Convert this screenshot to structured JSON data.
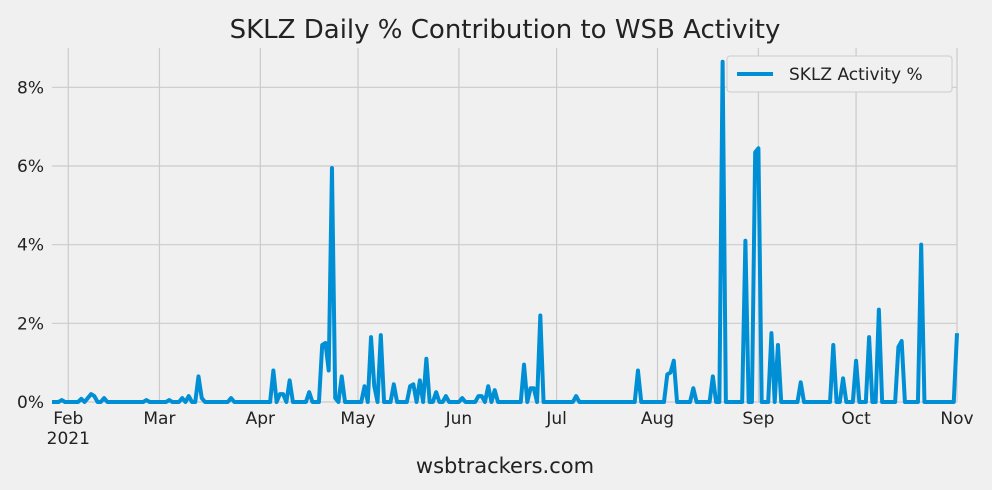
{
  "chart_data": {
    "type": "line",
    "title": "SKLZ Daily % Contribution to WSB Activity",
    "xlabel": "wsbtrackers.com",
    "series": [
      {
        "name": "SKLZ Activity %",
        "color": "#008fd5",
        "values": [
          0,
          0,
          0,
          0.05,
          0,
          0,
          0,
          0,
          0,
          0.08,
          0,
          0.1,
          0.2,
          0.15,
          0,
          0,
          0.1,
          0,
          0,
          0,
          0,
          0,
          0,
          0,
          0,
          0,
          0,
          0,
          0,
          0.05,
          0,
          0,
          0,
          0,
          0,
          0,
          0.05,
          0,
          0,
          0,
          0.1,
          0,
          0.15,
          0,
          0,
          0.65,
          0.1,
          0,
          0,
          0,
          0,
          0,
          0,
          0,
          0,
          0.1,
          0,
          0,
          0,
          0,
          0,
          0,
          0,
          0,
          0,
          0,
          0,
          0,
          0.8,
          0,
          0.2,
          0.2,
          0,
          0.55,
          0,
          0,
          0,
          0,
          0,
          0.25,
          0,
          0,
          0,
          1.45,
          1.5,
          0.8,
          5.95,
          0.1,
          0,
          0.65,
          0,
          0,
          0,
          0,
          0,
          0,
          0.4,
          0,
          1.65,
          0.4,
          0,
          1.7,
          0,
          0,
          0,
          0.45,
          0,
          0,
          0,
          0,
          0.4,
          0.45,
          0,
          0.55,
          0,
          1.1,
          0,
          0,
          0.25,
          0,
          0,
          0.15,
          0,
          0,
          0,
          0,
          0.1,
          0,
          0,
          0,
          0,
          0.15,
          0.15,
          0,
          0.4,
          0,
          0.3,
          0,
          0,
          0,
          0,
          0,
          0,
          0,
          0,
          0.95,
          0,
          0.35,
          0.35,
          0,
          2.2,
          0,
          0,
          0,
          0,
          0,
          0,
          0,
          0,
          0,
          0,
          0.15,
          0,
          0,
          0,
          0,
          0,
          0,
          0,
          0,
          0,
          0,
          0,
          0,
          0,
          0,
          0,
          0,
          0,
          0,
          0.8,
          0,
          0,
          0,
          0,
          0,
          0,
          0,
          0,
          0.7,
          0.75,
          1.05,
          0,
          0,
          0,
          0,
          0,
          0.35,
          0,
          0,
          0,
          0,
          0,
          0.65,
          0,
          0,
          8.65,
          0,
          0,
          0,
          0,
          0,
          0,
          4.1,
          0,
          0,
          6.35,
          6.45,
          0,
          0,
          0,
          1.75,
          0,
          1.45,
          0,
          0,
          0,
          0,
          0,
          0,
          0.5,
          0,
          0,
          0,
          0,
          0,
          0,
          0,
          0,
          0,
          1.45,
          0,
          0,
          0.6,
          0,
          0,
          0,
          1.05,
          0,
          0,
          0,
          1.65,
          0,
          0,
          2.35,
          0,
          0,
          0,
          0,
          0,
          1.4,
          1.55,
          0,
          0,
          0,
          0,
          0,
          4.0,
          0,
          0,
          0,
          0,
          0,
          0,
          0,
          0,
          0,
          0,
          1.75
        ]
      }
    ],
    "xlim": [
      0,
      278
    ],
    "xticks": [
      {
        "value": 5,
        "label": "Feb\n2021"
      },
      {
        "value": 33,
        "label": "Mar"
      },
      {
        "value": 64,
        "label": "Apr"
      },
      {
        "value": 94,
        "label": "May"
      },
      {
        "value": 125,
        "label": "Jun"
      },
      {
        "value": 155,
        "label": "Jul"
      },
      {
        "value": 186,
        "label": "Aug"
      },
      {
        "value": 217,
        "label": "Sep"
      },
      {
        "value": 247,
        "label": "Oct"
      },
      {
        "value": 278,
        "label": "Nov"
      }
    ],
    "ylim": [
      0,
      9
    ],
    "yticks": [
      {
        "value": 0,
        "label": "0%"
      },
      {
        "value": 2,
        "label": "2%"
      },
      {
        "value": 4,
        "label": "4%"
      },
      {
        "value": 6,
        "label": "6%"
      },
      {
        "value": 8,
        "label": "8%"
      }
    ],
    "grid": true,
    "legend": "upper right"
  }
}
